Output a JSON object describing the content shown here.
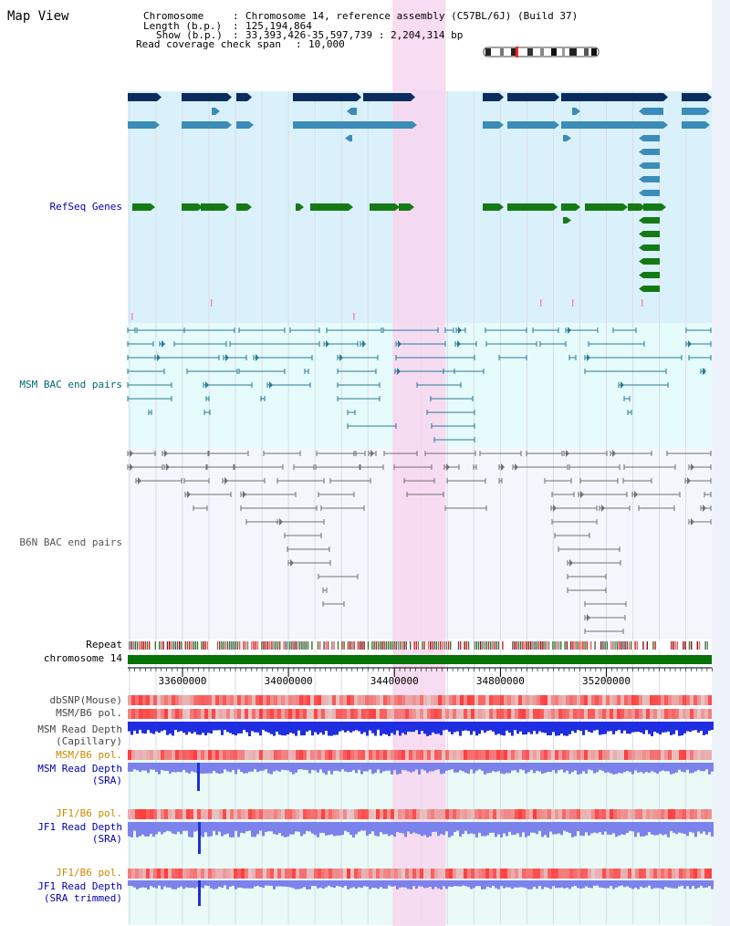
{
  "app": {
    "title": "Map View"
  },
  "header": {
    "chromosome_key": "Chromosome",
    "chromosome_value": "Chromosome 14, reference assembly (C57BL/6J) (Build 37)",
    "length_key": "Length (b.p.)",
    "length_value": "125,194,864",
    "show_key": "Show (b.p.)",
    "show_value": "33,393,426-35,597,739 : 2,204,314 bp",
    "coverage_key": "Read coverage check span",
    "coverage_value": "10,000"
  },
  "region": {
    "start_bp": 33393426,
    "end_bp": 35597739,
    "highlight_bp": [
      34393426,
      34593426
    ]
  },
  "tracks": {
    "refseq_label": "RefSeq Genes",
    "msm_bac_label": "MSM BAC end pairs",
    "b6n_bac_label": "B6N BAC end pairs",
    "repeat_label": "Repeat",
    "chromosome_label": "chromosome 14",
    "dbsnp_label": "dbSNP(Mouse)",
    "msm_b6_pol_label": "MSM/B6 pol.",
    "msm_read_depth_cap_label_1": "MSM Read Depth",
    "msm_read_depth_cap_label_2": "(Capillary)",
    "msm_b6_pol_sra_label": "MSM/B6 pol.",
    "msm_read_depth_sra_label_1": "MSM Read Depth",
    "msm_read_depth_sra_label_2": "(SRA)",
    "jf1_b6_pol_label": "JF1/B6 pol.",
    "jf1_read_depth_sra_label_1": "JF1 Read Depth",
    "jf1_read_depth_sra_label_2": "(SRA)",
    "jf1_b6_pol_trim_label": "JF1/B6 pol.",
    "jf1_read_depth_trim_label_1": "JF1 Read Depth",
    "jf1_read_depth_trim_label_2": "(SRA trimmed)"
  },
  "axis": {
    "ticks": [
      "33600000",
      "34000000",
      "34400000",
      "34800000",
      "35200000"
    ],
    "tick_values": [
      33600000,
      34000000,
      34400000,
      34800000,
      35200000
    ]
  },
  "colors": {
    "refseq_dark": "#0b2d5e",
    "refseq_mid": "#3b8cb8",
    "refseq_green": "#157a15",
    "msm_bac": "#2a7a96",
    "b6n_bac": "#707070",
    "highlight": "#f7d6ef",
    "chromosome_bar": "#057305",
    "link_blue": "#0000aa",
    "link_teal": "#006666",
    "orange": "#cc8800",
    "depth_blue": "#1f2ee0",
    "depth_light": "#7c82ec"
  }
}
